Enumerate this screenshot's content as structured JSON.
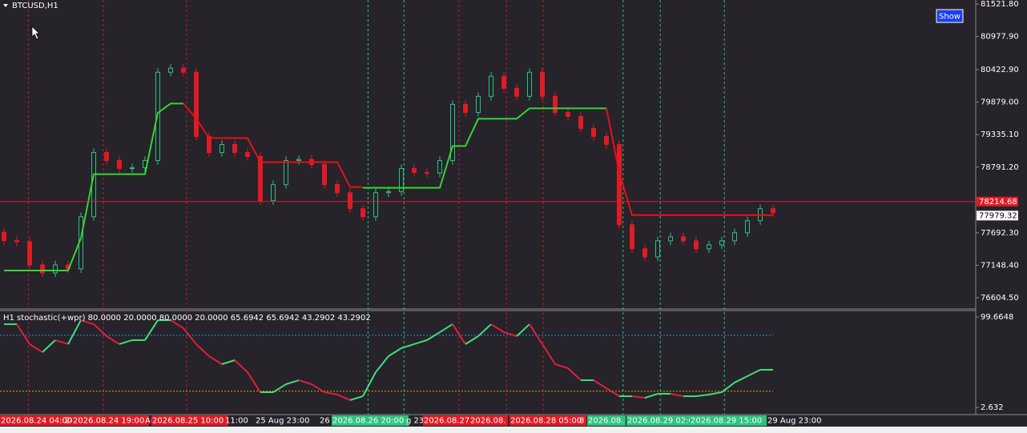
{
  "chart_data": {
    "type": "candlestick",
    "title": "BTCUSD,H1",
    "button": "Show",
    "open": [
      77700,
      77560,
      77540,
      77154,
      77019,
      77154,
      77087,
      77960,
      79035,
      78901,
      78767,
      78780,
      78901,
      80379,
      80447,
      80379,
      79304,
      79035,
      79170,
      79035,
      78968,
      78229,
      78498,
      78901,
      78920,
      78834,
      78498,
      78363,
      78095,
      77960,
      78363,
      78380,
      78767,
      78700,
      78690,
      78901,
      79842,
      79707,
      79976,
      80313,
      80111,
      79976,
      80379,
      79976,
      79707,
      79640,
      79438,
      79304,
      79170,
      77826,
      77423,
      77288,
      77557,
      77624,
      77557,
      77423,
      77490,
      77557,
      77691,
      77893,
      78095
    ],
    "high": [
      77770,
      77630,
      77610,
      77224,
      77224,
      77224,
      78030,
      79105,
      79105,
      78971,
      78850,
      78971,
      80449,
      80517,
      80517,
      80449,
      79374,
      79240,
      79240,
      79105,
      79038,
      78568,
      78971,
      78990,
      78990,
      78904,
      78568,
      78433,
      78165,
      78433,
      78450,
      78837,
      78837,
      78770,
      78971,
      79912,
      79912,
      80046,
      80383,
      80383,
      80181,
      80449,
      80449,
      80046,
      79777,
      79710,
      79508,
      79374,
      79240,
      77896,
      77493,
      77627,
      77694,
      77694,
      77627,
      77560,
      77627,
      77761,
      77963,
      78165,
      78165
    ],
    "low": [
      77490,
      77470,
      77084,
      76949,
      76949,
      77017,
      77017,
      77890,
      78831,
      78697,
      78697,
      78710,
      78831,
      80309,
      80309,
      79234,
      78965,
      78965,
      78965,
      78898,
      78159,
      78159,
      78428,
      78831,
      78764,
      78428,
      78293,
      78025,
      77890,
      77890,
      78293,
      78310,
      78630,
      78620,
      78620,
      78831,
      79637,
      79637,
      79906,
      80041,
      79906,
      79906,
      79906,
      79637,
      79570,
      79368,
      79234,
      79100,
      77756,
      77353,
      77218,
      77218,
      77487,
      77487,
      77353,
      77353,
      77420,
      77487,
      77621,
      77823,
      77957
    ],
    "close": [
      77560,
      77540,
      77154,
      77019,
      77154,
      77087,
      77960,
      79035,
      78901,
      78767,
      78780,
      78901,
      80379,
      80447,
      80379,
      79304,
      79035,
      79170,
      79035,
      78968,
      78229,
      78498,
      78901,
      78920,
      78834,
      78498,
      78363,
      78095,
      77960,
      78363,
      78380,
      78767,
      78700,
      78690,
      78901,
      79842,
      79707,
      79976,
      80313,
      80111,
      79976,
      80379,
      79976,
      79707,
      79640,
      79438,
      79304,
      79170,
      77826,
      77423,
      77288,
      77557,
      77624,
      77557,
      77423,
      77490,
      77557,
      77691,
      77893,
      78095,
      78027
    ],
    "up_color": "#2ec27e",
    "down_color": "#e01b24",
    "series": [
      {
        "color": "#33d633",
        "values": [
          77060,
          77060,
          77060,
          77060,
          77060,
          77060,
          77600,
          78672,
          78672,
          78672,
          78672,
          78672,
          79700,
          79855,
          79855,
          null,
          null,
          null,
          null,
          null,
          null,
          null,
          null,
          null,
          null,
          null,
          null,
          null,
          78444,
          78444,
          78444,
          78444,
          78444,
          78444,
          78444,
          79143,
          79143,
          79600,
          79600,
          79600,
          79600,
          79775,
          79775,
          79775,
          79775,
          79775,
          79775,
          79775,
          null,
          null,
          null,
          null,
          null,
          null,
          null,
          null,
          null,
          null,
          null,
          null,
          null
        ]
      },
      {
        "color": "#e8101a",
        "values": [
          null,
          null,
          null,
          null,
          null,
          null,
          null,
          null,
          null,
          null,
          null,
          null,
          null,
          null,
          79855,
          79600,
          79277,
          79277,
          79277,
          79277,
          78874,
          78874,
          78874,
          78874,
          78874,
          78874,
          78874,
          78458,
          78458,
          null,
          null,
          null,
          null,
          null,
          null,
          null,
          null,
          null,
          null,
          null,
          null,
          null,
          null,
          null,
          null,
          null,
          null,
          79775,
          78700,
          77987,
          77987,
          77987,
          77987,
          77987,
          77987,
          77987,
          77987,
          77987,
          77987,
          77987,
          77987
        ]
      }
    ],
    "ylim": [
      76416,
      81589
    ],
    "yticks": [
      {
        "value": 81521.8,
        "label": "81521.80"
      },
      {
        "value": 80977.9,
        "label": "80977.90"
      },
      {
        "value": 80422.9,
        "label": "80422.90"
      },
      {
        "value": 79879,
        "label": "79879.00"
      },
      {
        "value": 79335.1,
        "label": "79335.10"
      },
      {
        "value": 78791.2,
        "label": "78791.20"
      },
      {
        "value": 77692.3,
        "label": "77692.30"
      },
      {
        "value": 77148.4,
        "label": "77148.40"
      },
      {
        "value": 76604.5,
        "label": "76604.50"
      }
    ],
    "price_lines": [
      {
        "value": 78214.68,
        "color": "#e01b24"
      },
      {
        "value": 77979.32,
        "color": "#ffffff"
      }
    ],
    "vlines": [
      {
        "at": 1.9,
        "color": "#c01c28"
      },
      {
        "at": 7.75,
        "color": "#c01c28"
      },
      {
        "at": 14.25,
        "color": "#c01c28"
      },
      {
        "at": 35.5,
        "color": "#c01c28"
      },
      {
        "at": 39.2,
        "color": "#c01c28"
      },
      {
        "at": 42.06,
        "color": "#c01c28"
      },
      {
        "at": 28.4,
        "color": "#2ec27e"
      },
      {
        "at": 31.2,
        "color": "#2ec27e"
      },
      {
        "at": 48.3,
        "color": "#2ec27e"
      },
      {
        "at": 51.2,
        "color": "#2ec27e"
      },
      {
        "at": 56.2,
        "color": "#2ec27e"
      }
    ],
    "indicator": {
      "title": "H1 stochastic(+wpr) 80.0000 20.0000 80.0000 20.0000 65.6942 65.6942 43.2902 43.2902",
      "values": [
        91.9,
        91.9,
        70.5,
        61.9,
        74.8,
        70.5,
        96.2,
        91.9,
        79.1,
        70.5,
        74.8,
        74.8,
        96.2,
        96.2,
        87.6,
        70.5,
        57.6,
        49.0,
        53.3,
        40.4,
        18.9,
        18.9,
        27.5,
        31.8,
        27.5,
        18.9,
        16.4,
        10.4,
        14.6,
        40.4,
        57.6,
        66.2,
        70.5,
        74.8,
        83.3,
        91.9,
        70.5,
        79.1,
        91.9,
        83.3,
        79.1,
        91.9,
        70.5,
        49.0,
        44.7,
        31.8,
        31.8,
        23.2,
        14.6,
        14.6,
        12.9,
        17.2,
        17.2,
        14.6,
        14.6,
        16.4,
        18.9,
        29.3,
        36.1,
        43.0,
        43.0
      ],
      "up_color": "#3ee07a",
      "down_color": "#e0203a",
      "levels": [
        {
          "value": 80,
          "color": "#3584e4"
        },
        {
          "value": 20,
          "color": "#e5a50a"
        }
      ],
      "ylim": [
        -5.1,
        105.7
      ],
      "yticks": [
        99.6648,
        2.632
      ]
    },
    "time_labels": [
      {
        "text": "2026.08.24 04:00",
        "bg": "#e01b24"
      },
      {
        "text": "24",
        "bg": null
      },
      {
        "text": "2026.08.24 19:00",
        "bg": "#e01b24"
      },
      {
        "text": "Au",
        "bg": null
      },
      {
        "text": "2026.08.25 10:00",
        "bg": "#e01b24"
      },
      {
        "text": "11:00",
        "bg": null
      },
      {
        "text": "25 Aug 23:00",
        "bg": null
      },
      {
        "text": "26",
        "bg": null
      },
      {
        "text": "2026.08.26 20:00",
        "bg": "#2ec27e"
      },
      {
        "text": "g 23",
        "bg": null
      },
      {
        "text": "2026.08.27",
        "bg": "#e01b24"
      },
      {
        "text": "2026.08.",
        "bg": "#e01b24"
      },
      {
        "text": "2026.08.28 05:00",
        "bg": "#e01b24"
      },
      {
        "text": "8",
        "bg": null
      },
      {
        "text": "2026.08.",
        "bg": "#2ec27e"
      },
      {
        "text": "2026.08.29 02:0",
        "bg": "#2ec27e"
      },
      {
        "text": "2026.08.29 15:00",
        "bg": "#2ec27e"
      },
      {
        "text": "29 Aug 23:00",
        "bg": null
      }
    ]
  }
}
